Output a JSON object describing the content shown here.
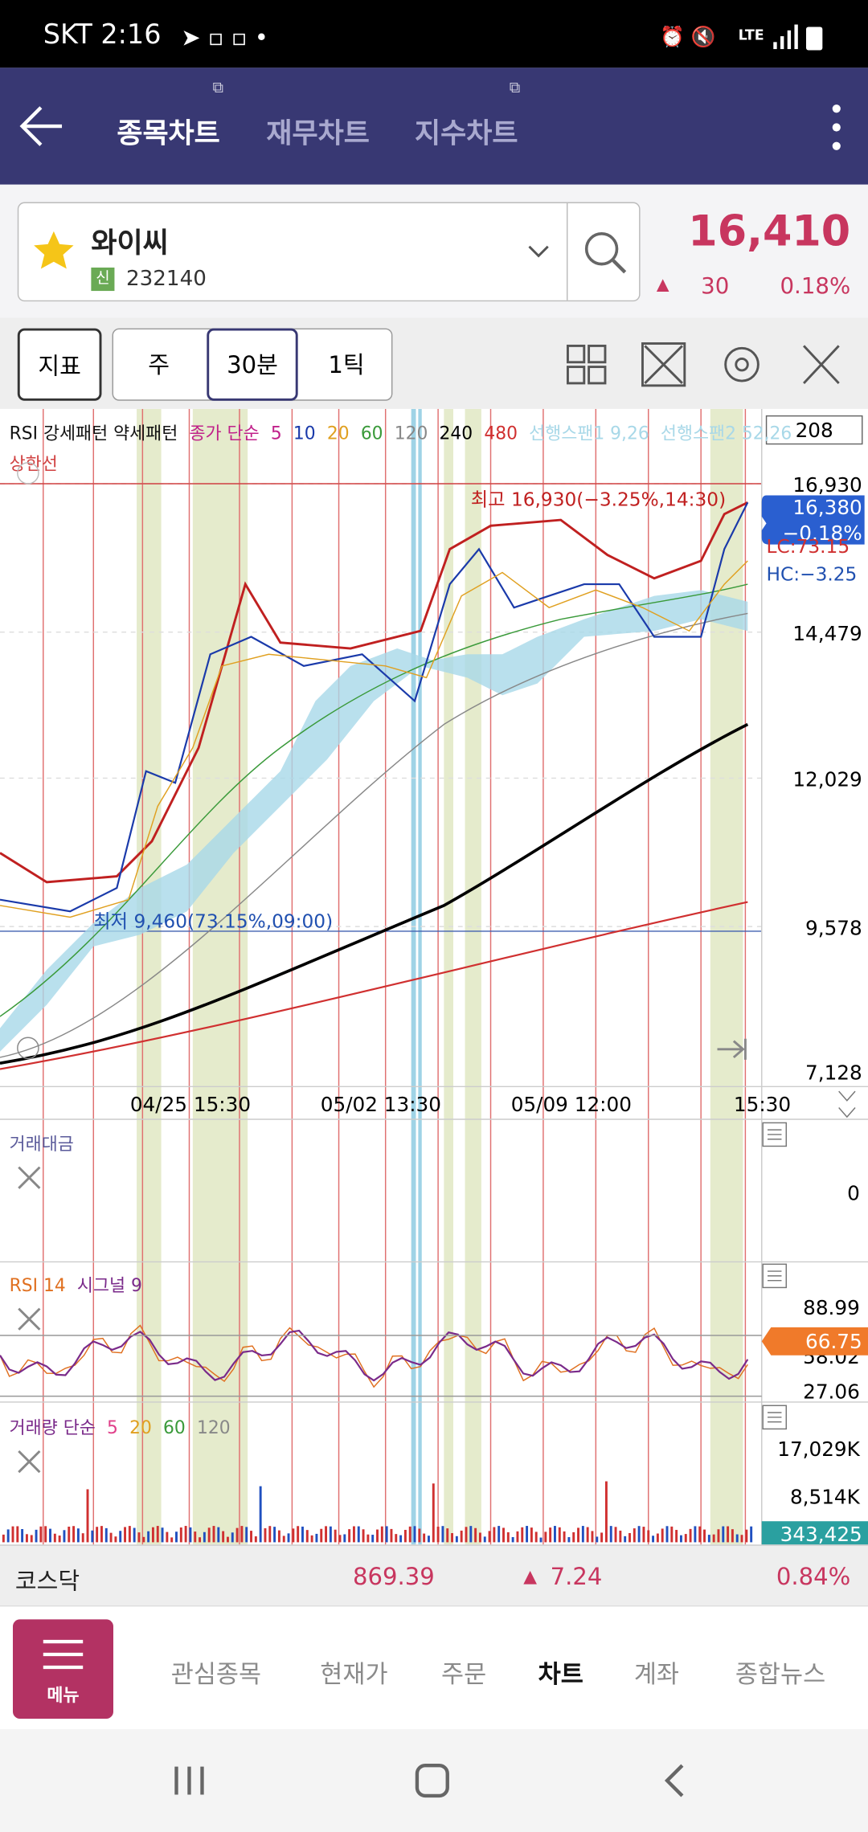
{
  "status_bar": {
    "carrier_time": "SKT 2:16",
    "network": "LTE"
  },
  "header": {
    "tabs": [
      "종목차트",
      "재무차트",
      "지수차트"
    ]
  },
  "stock": {
    "name": "와이씨",
    "market_badge": "신",
    "code": "232140",
    "price": "16,410",
    "change": "30",
    "change_pct": "0.18%"
  },
  "toolbar": {
    "indicator_button": "지표",
    "periods": [
      "주",
      "30분",
      "1틱"
    ]
  },
  "chart": {
    "legend": [
      "RSI 강세패턴 약세패턴",
      "종가 단순",
      "5",
      "10",
      "20",
      "60",
      "120",
      "240",
      "480",
      "선행스팬1 9,26",
      "선행스팬2 52,26"
    ],
    "count": "208",
    "limit_label": "상한선",
    "high_note": "최고 16,930(−3.25%,14:30)",
    "low_note": "최저 9,460(73.15%,09:00)",
    "price_axis": [
      "16,930",
      "14,479",
      "12,029",
      "9,578",
      "7,128"
    ],
    "current_price": "16,380",
    "current_change": "−0.18%",
    "lc": "LC:73.15",
    "hc": "HC:−3.25",
    "time_axis": [
      "04/25 15:30",
      "05/02 13:30",
      "05/09 12:00",
      "15:30"
    ]
  },
  "panels": [
    {
      "title": [
        "거래대금"
      ],
      "labels": [
        "0"
      ]
    },
    {
      "title": [
        "RSI 14",
        "시그널 9"
      ],
      "labels": [
        "88.99",
        "58.02",
        "27.06"
      ],
      "badge": "66.75"
    },
    {
      "title": [
        "거래량 단순",
        "5",
        "20",
        "60",
        "120"
      ],
      "labels": [
        "17,029K",
        "8,514K"
      ],
      "badge": "343,425"
    }
  ],
  "market_bar": {
    "name": "코스닥",
    "index": "869.39",
    "change": "7.24",
    "change_pct": "0.84%"
  },
  "bottom_nav": {
    "menu": "메뉴",
    "items": [
      "관심종목",
      "현재가",
      "주문",
      "차트",
      "계좌",
      "종합뉴스"
    ]
  }
}
